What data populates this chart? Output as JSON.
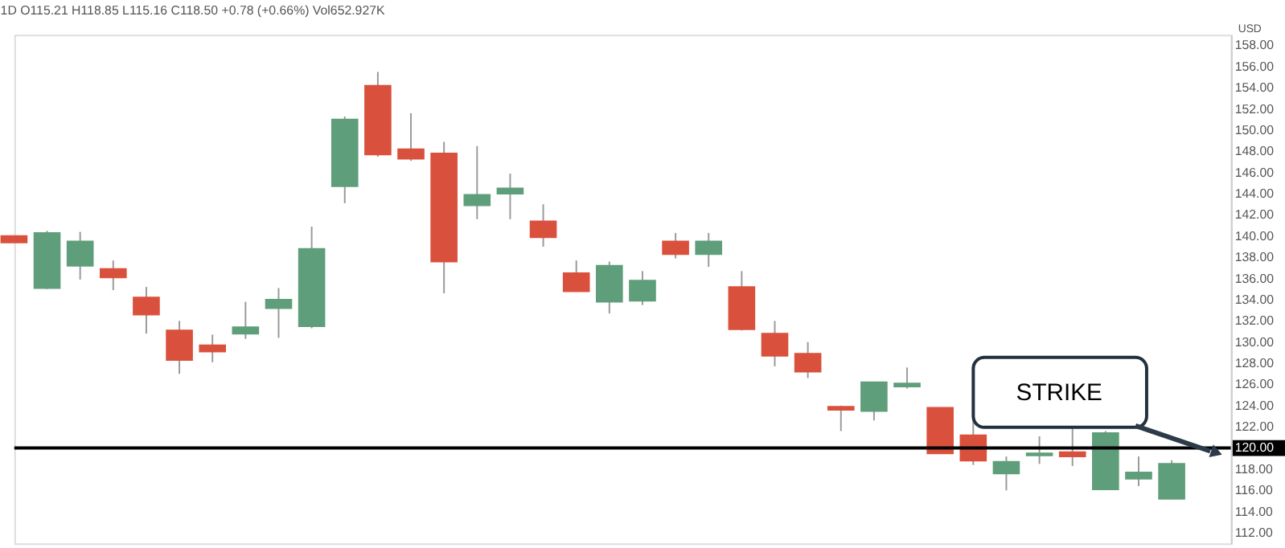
{
  "chart_data": {
    "type": "candlestick",
    "title": "1D O115.21 H118.85 L115.16 C118.50 +0.78 (+0.66%) Vol652.927K",
    "ylabel": "USD",
    "categories": [
      null,
      null,
      null,
      null,
      null,
      null,
      null,
      null,
      null,
      null,
      null,
      null,
      null,
      null,
      null,
      null,
      null,
      null,
      null,
      null,
      null,
      null,
      null,
      null,
      null,
      null,
      null,
      null,
      null,
      null,
      null,
      null,
      null,
      null,
      null,
      null
    ],
    "ohlc": [
      [
        140.0,
        140.0,
        139.4,
        139.4
      ],
      [
        135.1,
        140.5,
        135.0,
        140.3
      ],
      [
        137.2,
        140.4,
        135.9,
        139.5
      ],
      [
        136.9,
        137.7,
        134.9,
        136.1
      ],
      [
        134.2,
        135.2,
        130.8,
        132.6
      ],
      [
        131.1,
        132.0,
        127.0,
        128.3
      ],
      [
        129.7,
        130.7,
        128.1,
        129.1
      ],
      [
        130.8,
        133.8,
        130.3,
        131.4
      ],
      [
        133.2,
        135.1,
        130.4,
        134.0
      ],
      [
        131.5,
        140.9,
        131.3,
        138.8
      ],
      [
        144.7,
        151.3,
        143.1,
        151.0
      ],
      [
        154.2,
        155.5,
        147.5,
        147.7
      ],
      [
        148.2,
        151.6,
        147.1,
        147.3
      ],
      [
        147.8,
        148.9,
        134.6,
        137.6
      ],
      [
        142.9,
        148.5,
        141.6,
        143.9
      ],
      [
        144.0,
        145.9,
        141.6,
        144.5
      ],
      [
        141.4,
        143.0,
        139.0,
        139.9
      ],
      [
        136.5,
        137.7,
        134.8,
        134.8
      ],
      [
        133.8,
        137.6,
        132.7,
        137.2
      ],
      [
        133.9,
        136.7,
        133.5,
        135.8
      ],
      [
        139.5,
        140.3,
        137.9,
        138.3
      ],
      [
        138.3,
        140.3,
        137.1,
        139.5
      ],
      [
        135.2,
        136.7,
        131.1,
        131.2
      ],
      [
        130.8,
        132.0,
        127.7,
        128.7
      ],
      [
        128.9,
        130.0,
        126.6,
        127.2
      ],
      [
        123.9,
        124.0,
        121.6,
        123.6
      ],
      [
        123.5,
        126.2,
        122.6,
        126.2
      ],
      [
        125.8,
        127.6,
        125.6,
        126.1
      ],
      [
        123.8,
        123.8,
        119.5,
        119.5
      ],
      [
        121.2,
        122.8,
        118.4,
        118.8
      ],
      [
        117.6,
        119.2,
        116.0,
        118.7
      ],
      [
        119.3,
        121.1,
        118.5,
        119.5
      ],
      [
        119.6,
        122.2,
        118.3,
        119.2
      ],
      [
        116.1,
        121.6,
        116.1,
        121.4
      ],
      [
        117.1,
        119.2,
        116.4,
        117.7
      ],
      [
        115.21,
        118.85,
        115.16,
        118.5
      ]
    ],
    "colors": [
      "#d9513c",
      "#5f9e7a",
      "#5f9e7a",
      "#d9513c",
      "#d9513c",
      "#d9513c",
      "#d9513c",
      "#5f9e7a",
      "#5f9e7a",
      "#5f9e7a",
      "#5f9e7a",
      "#d9513c",
      "#d9513c",
      "#d9513c",
      "#5f9e7a",
      "#5f9e7a",
      "#d9513c",
      "#d9513c",
      "#5f9e7a",
      "#5f9e7a",
      "#d9513c",
      "#5f9e7a",
      "#d9513c",
      "#d9513c",
      "#d9513c",
      "#d9513c",
      "#5f9e7a",
      "#5f9e7a",
      "#d9513c",
      "#d9513c",
      "#5f9e7a",
      "#5f9e7a",
      "#d9513c",
      "#5f9e7a",
      "#5f9e7a",
      "#5f9e7a"
    ],
    "ylim": [
      111,
      159
    ],
    "yticks": [
      {
        "value": 112,
        "label": "112.00"
      },
      {
        "value": 114,
        "label": "114.00"
      },
      {
        "value": 116,
        "label": "116.00"
      },
      {
        "value": 118,
        "label": "118.00"
      },
      {
        "value": 120,
        "label": "120.00"
      },
      {
        "value": 122,
        "label": "122.00"
      },
      {
        "value": 124,
        "label": "124.00"
      },
      {
        "value": 126,
        "label": "126.00"
      },
      {
        "value": 128,
        "label": "128.00"
      },
      {
        "value": 130,
        "label": "130.00"
      },
      {
        "value": 132,
        "label": "132.00"
      },
      {
        "value": 134,
        "label": "134.00"
      },
      {
        "value": 136,
        "label": "136.00"
      },
      {
        "value": 138,
        "label": "138.00"
      },
      {
        "value": 140,
        "label": "140.00"
      },
      {
        "value": 142,
        "label": "142.00"
      },
      {
        "value": 144,
        "label": "144.00"
      },
      {
        "value": 146,
        "label": "146.00"
      },
      {
        "value": 148,
        "label": "148.00"
      },
      {
        "value": 150,
        "label": "150.00"
      },
      {
        "value": 152,
        "label": "152.00"
      },
      {
        "value": 154,
        "label": "154.00"
      },
      {
        "value": 156,
        "label": "156.00"
      },
      {
        "value": 158,
        "label": "158.00"
      }
    ],
    "ref_lines": [
      {
        "axis": "y",
        "value": 120,
        "label": "STRIKE",
        "color": "#000000"
      }
    ],
    "grid": false
  }
}
